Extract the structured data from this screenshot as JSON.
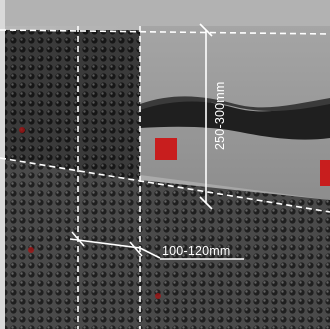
{
  "figure": {
    "dimension_labels": {
      "spacing": "100-120mm",
      "height": "250-300mm"
    },
    "colors": {
      "membrane": "#3a3a3a",
      "dimple": "#1c1c1c",
      "dimple_highlight": "#8e8e8e",
      "plaster": "#a8a8a8",
      "wall_concrete": "#9a9a9a",
      "dark_band": "#232323",
      "marker_red": "#c81e1e",
      "guide_line": "#ffffff"
    }
  }
}
